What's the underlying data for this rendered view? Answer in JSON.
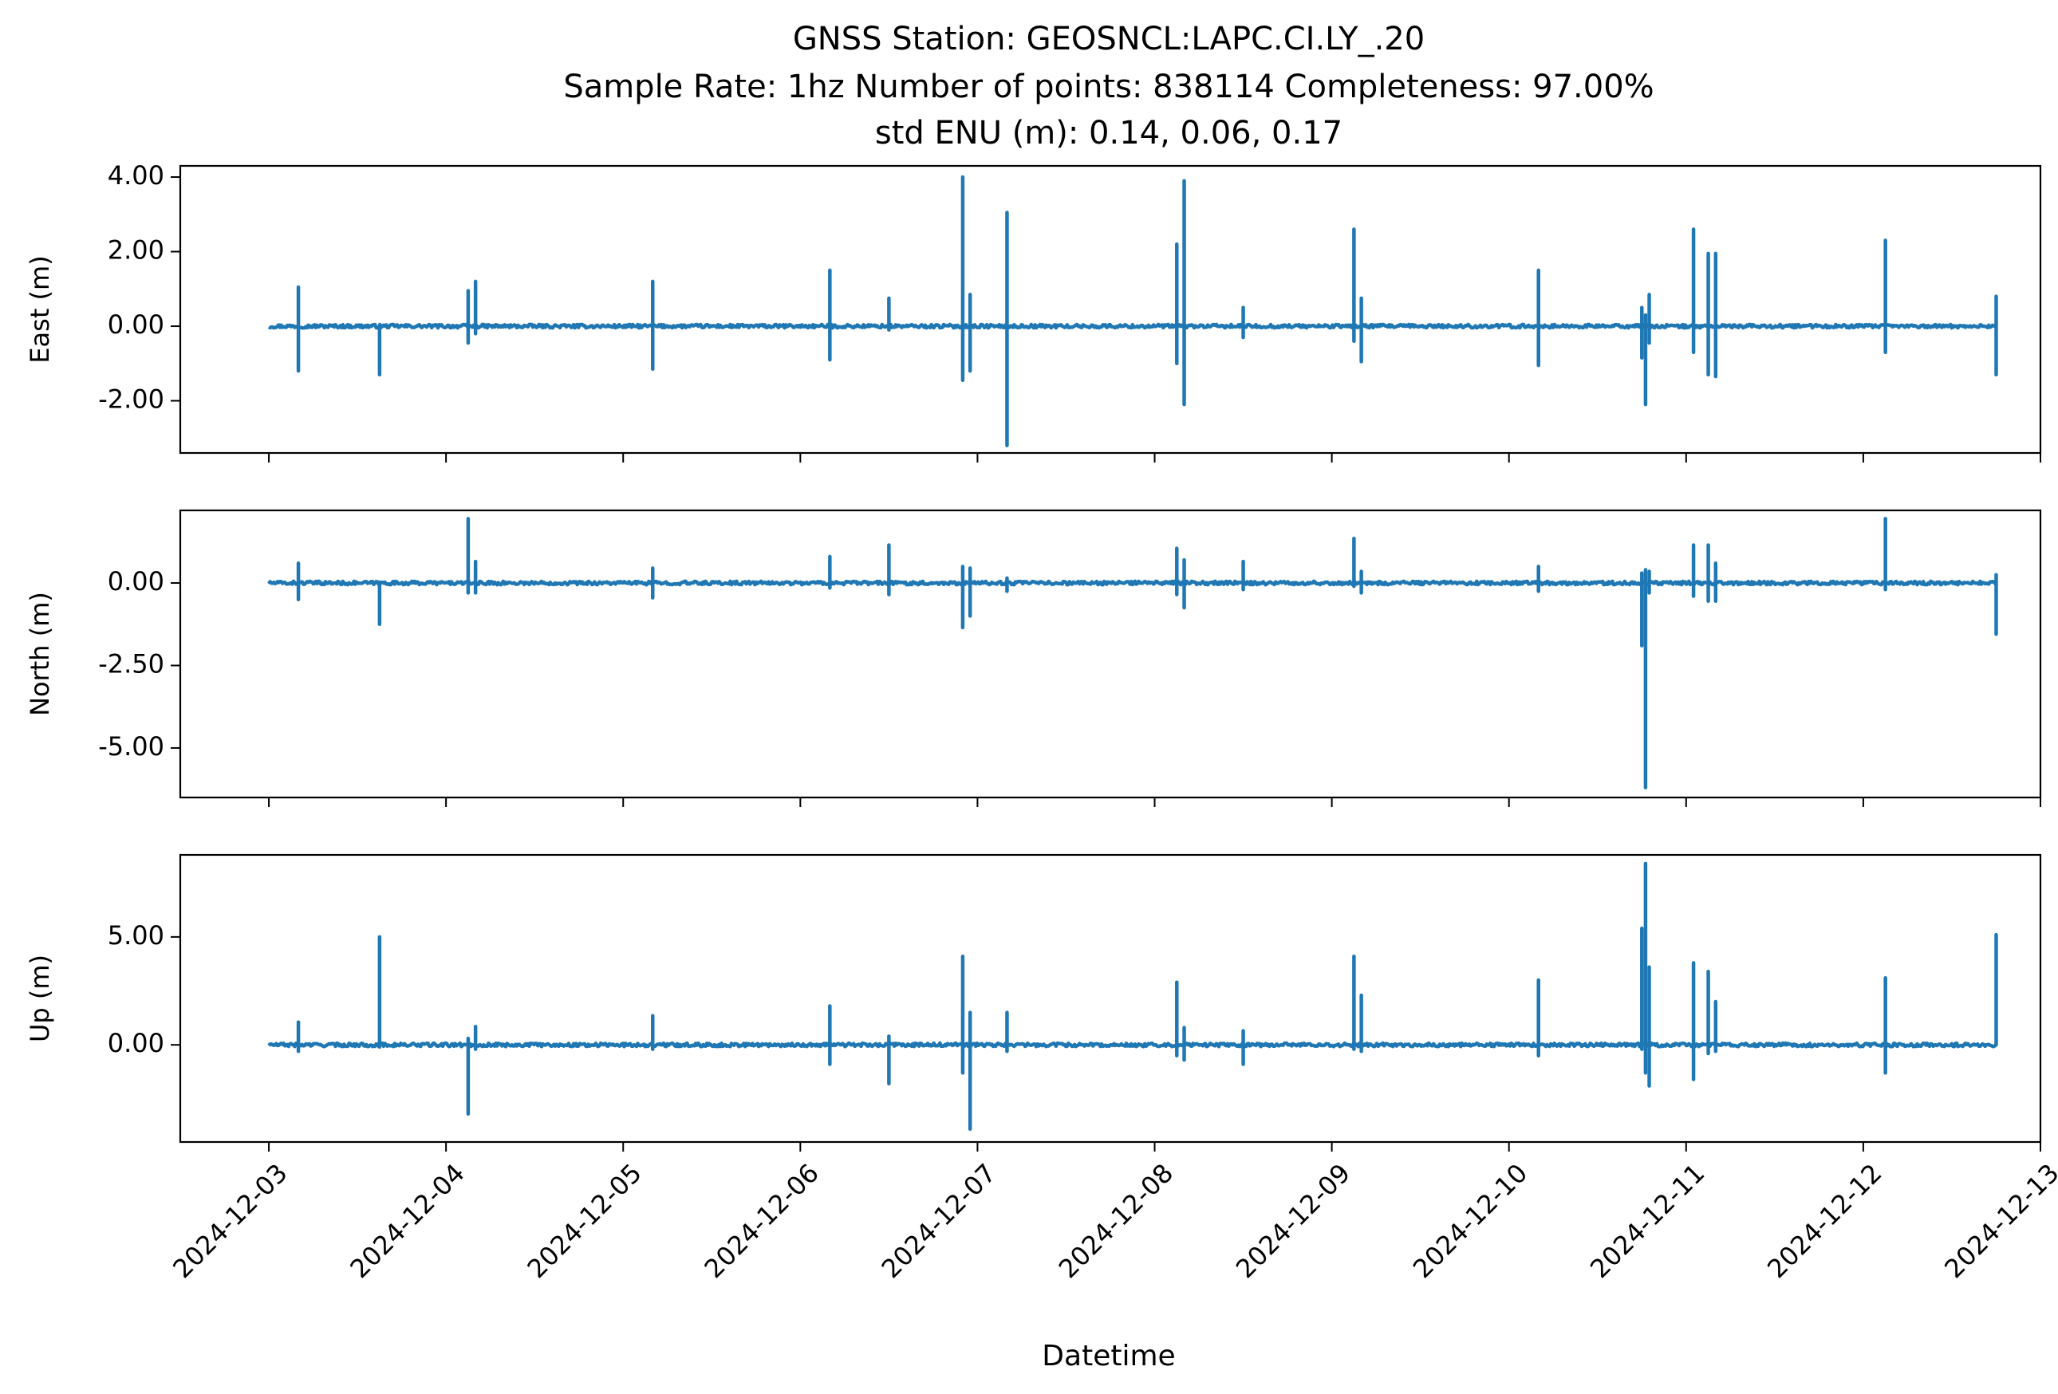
{
  "figure": {
    "title_lines": [
      "GNSS Station: GEOSNCL:LAPC.CI.LY_.20",
      "Sample Rate: 1hz   Number of points: 838114    Completeness:  97.00%",
      "std ENU (m):  0.14, 0.06, 0.17"
    ],
    "xlabel": "Datetime",
    "line_color": "#1f77b4"
  },
  "chart_data": [
    {
      "type": "line",
      "name": "east",
      "ylabel": "East (m)",
      "ylim": [
        -3.4,
        4.3
      ],
      "yticks": [
        4,
        2,
        0,
        -2
      ],
      "ytick_labels": [
        "4.00",
        "2.00",
        "0.00",
        "-2.00"
      ],
      "xlim": [
        "2024-12-02T12:00",
        "2024-12-13T00:00"
      ],
      "spikes": [
        {
          "t": "2024-12-03T04:00",
          "max": 1.05,
          "min": -1.2
        },
        {
          "t": "2024-12-03T15:00",
          "max": -0.1,
          "min": -1.3
        },
        {
          "t": "2024-12-04T03:00",
          "max": 0.95,
          "min": -0.45
        },
        {
          "t": "2024-12-04T04:00",
          "max": 1.2,
          "min": -0.2
        },
        {
          "t": "2024-12-05T04:00",
          "max": 1.2,
          "min": -1.15
        },
        {
          "t": "2024-12-06T04:00",
          "max": 1.5,
          "min": -0.9
        },
        {
          "t": "2024-12-06T12:00",
          "max": 0.75,
          "min": -0.1
        },
        {
          "t": "2024-12-06T22:00",
          "max": 4.0,
          "min": -1.45
        },
        {
          "t": "2024-12-06T23:00",
          "max": 0.85,
          "min": -1.2
        },
        {
          "t": "2024-12-07T04:00",
          "max": 3.05,
          "min": -3.2
        },
        {
          "t": "2024-12-08T03:00",
          "max": 2.2,
          "min": -1.0
        },
        {
          "t": "2024-12-08T04:00",
          "max": 3.9,
          "min": -2.1
        },
        {
          "t": "2024-12-08T12:00",
          "max": 0.5,
          "min": -0.3
        },
        {
          "t": "2024-12-09T03:00",
          "max": 2.6,
          "min": -0.4
        },
        {
          "t": "2024-12-09T04:00",
          "max": 0.75,
          "min": -0.95
        },
        {
          "t": "2024-12-10T04:00",
          "max": 1.5,
          "min": -1.05
        },
        {
          "t": "2024-12-10T18:00",
          "max": 0.5,
          "min": -0.85
        },
        {
          "t": "2024-12-10T18:30",
          "max": 0.3,
          "min": -2.1
        },
        {
          "t": "2024-12-10T19:00",
          "max": 0.85,
          "min": -0.45
        },
        {
          "t": "2024-12-11T01:00",
          "max": 2.6,
          "min": -0.7
        },
        {
          "t": "2024-12-11T03:00",
          "max": 1.95,
          "min": -1.3
        },
        {
          "t": "2024-12-11T04:00",
          "max": 1.95,
          "min": -1.35
        },
        {
          "t": "2024-12-12T03:00",
          "max": 2.3,
          "min": -0.7
        },
        {
          "t": "2024-12-12T18:00",
          "max": 0.8,
          "min": -1.3
        }
      ]
    },
    {
      "type": "line",
      "name": "north",
      "ylabel": "North (m)",
      "ylim": [
        -6.5,
        2.2
      ],
      "yticks": [
        0,
        -2.5,
        -5
      ],
      "ytick_labels": [
        "0.00",
        "-2.50",
        "-5.00"
      ],
      "xlim": [
        "2024-12-02T12:00",
        "2024-12-13T00:00"
      ],
      "spikes": [
        {
          "t": "2024-12-03T04:00",
          "max": 0.6,
          "min": -0.5
        },
        {
          "t": "2024-12-03T15:00",
          "max": 0.0,
          "min": -1.25
        },
        {
          "t": "2024-12-04T03:00",
          "max": 1.95,
          "min": -0.3
        },
        {
          "t": "2024-12-04T04:00",
          "max": 0.65,
          "min": -0.3
        },
        {
          "t": "2024-12-05T04:00",
          "max": 0.45,
          "min": -0.45
        },
        {
          "t": "2024-12-06T04:00",
          "max": 0.8,
          "min": -0.15
        },
        {
          "t": "2024-12-06T12:00",
          "max": 1.15,
          "min": -0.35
        },
        {
          "t": "2024-12-06T22:00",
          "max": 0.5,
          "min": -1.35
        },
        {
          "t": "2024-12-06T23:00",
          "max": 0.45,
          "min": -1.0
        },
        {
          "t": "2024-12-07T04:00",
          "max": 0.15,
          "min": -0.25
        },
        {
          "t": "2024-12-08T03:00",
          "max": 1.05,
          "min": -0.35
        },
        {
          "t": "2024-12-08T04:00",
          "max": 0.7,
          "min": -0.75
        },
        {
          "t": "2024-12-08T12:00",
          "max": 0.65,
          "min": -0.2
        },
        {
          "t": "2024-12-09T03:00",
          "max": 1.35,
          "min": -0.1
        },
        {
          "t": "2024-12-09T04:00",
          "max": 0.35,
          "min": -0.3
        },
        {
          "t": "2024-12-10T04:00",
          "max": 0.5,
          "min": -0.25
        },
        {
          "t": "2024-12-10T18:00",
          "max": 0.3,
          "min": -1.9
        },
        {
          "t": "2024-12-10T18:30",
          "max": 0.4,
          "min": -6.2
        },
        {
          "t": "2024-12-10T19:00",
          "max": 0.35,
          "min": -0.3
        },
        {
          "t": "2024-12-11T01:00",
          "max": 1.15,
          "min": -0.4
        },
        {
          "t": "2024-12-11T03:00",
          "max": 1.15,
          "min": -0.55
        },
        {
          "t": "2024-12-11T04:00",
          "max": 0.6,
          "min": -0.55
        },
        {
          "t": "2024-12-12T03:00",
          "max": 1.95,
          "min": -0.2
        },
        {
          "t": "2024-12-12T18:00",
          "max": 0.25,
          "min": -1.55
        }
      ]
    },
    {
      "type": "line",
      "name": "up",
      "ylabel": "Up (m)",
      "ylim": [
        -4.5,
        8.8
      ],
      "yticks": [
        5,
        0
      ],
      "ytick_labels": [
        "5.00",
        "0.00"
      ],
      "xlim": [
        "2024-12-02T12:00",
        "2024-12-13T00:00"
      ],
      "spikes": [
        {
          "t": "2024-12-03T04:00",
          "max": 1.05,
          "min": -0.3
        },
        {
          "t": "2024-12-03T15:00",
          "max": 5.0,
          "min": -0.1
        },
        {
          "t": "2024-12-04T03:00",
          "max": 0.3,
          "min": -3.2
        },
        {
          "t": "2024-12-04T04:00",
          "max": 0.85,
          "min": -0.2
        },
        {
          "t": "2024-12-05T04:00",
          "max": 1.35,
          "min": -0.2
        },
        {
          "t": "2024-12-06T04:00",
          "max": 1.8,
          "min": -0.9
        },
        {
          "t": "2024-12-06T12:00",
          "max": 0.4,
          "min": -1.8
        },
        {
          "t": "2024-12-06T22:00",
          "max": 4.1,
          "min": -1.3
        },
        {
          "t": "2024-12-06T23:00",
          "max": 1.5,
          "min": -3.9
        },
        {
          "t": "2024-12-07T04:00",
          "max": 1.5,
          "min": -0.3
        },
        {
          "t": "2024-12-08T03:00",
          "max": 2.9,
          "min": -0.5
        },
        {
          "t": "2024-12-08T04:00",
          "max": 0.8,
          "min": -0.7
        },
        {
          "t": "2024-12-08T12:00",
          "max": 0.65,
          "min": -0.9
        },
        {
          "t": "2024-12-09T03:00",
          "max": 4.1,
          "min": -0.2
        },
        {
          "t": "2024-12-09T04:00",
          "max": 2.3,
          "min": -0.3
        },
        {
          "t": "2024-12-10T04:00",
          "max": 3.0,
          "min": -0.5
        },
        {
          "t": "2024-12-10T18:00",
          "max": 5.4,
          "min": -0.2
        },
        {
          "t": "2024-12-10T18:30",
          "max": 8.4,
          "min": -1.3
        },
        {
          "t": "2024-12-10T19:00",
          "max": 3.6,
          "min": -1.9
        },
        {
          "t": "2024-12-11T01:00",
          "max": 3.8,
          "min": -1.6
        },
        {
          "t": "2024-12-11T03:00",
          "max": 3.4,
          "min": -0.4
        },
        {
          "t": "2024-12-11T04:00",
          "max": 2.0,
          "min": -0.3
        },
        {
          "t": "2024-12-12T03:00",
          "max": 3.1,
          "min": -1.3
        },
        {
          "t": "2024-12-12T18:00",
          "max": 5.1,
          "min": 0.0
        }
      ]
    }
  ],
  "xaxis": {
    "data_start": "2024-12-03T00:00",
    "data_end": "2024-12-12T18:00",
    "ticks": [
      "2024-12-03",
      "2024-12-04",
      "2024-12-05",
      "2024-12-06",
      "2024-12-07",
      "2024-12-08",
      "2024-12-09",
      "2024-12-10",
      "2024-12-11",
      "2024-12-12",
      "2024-12-13"
    ]
  }
}
